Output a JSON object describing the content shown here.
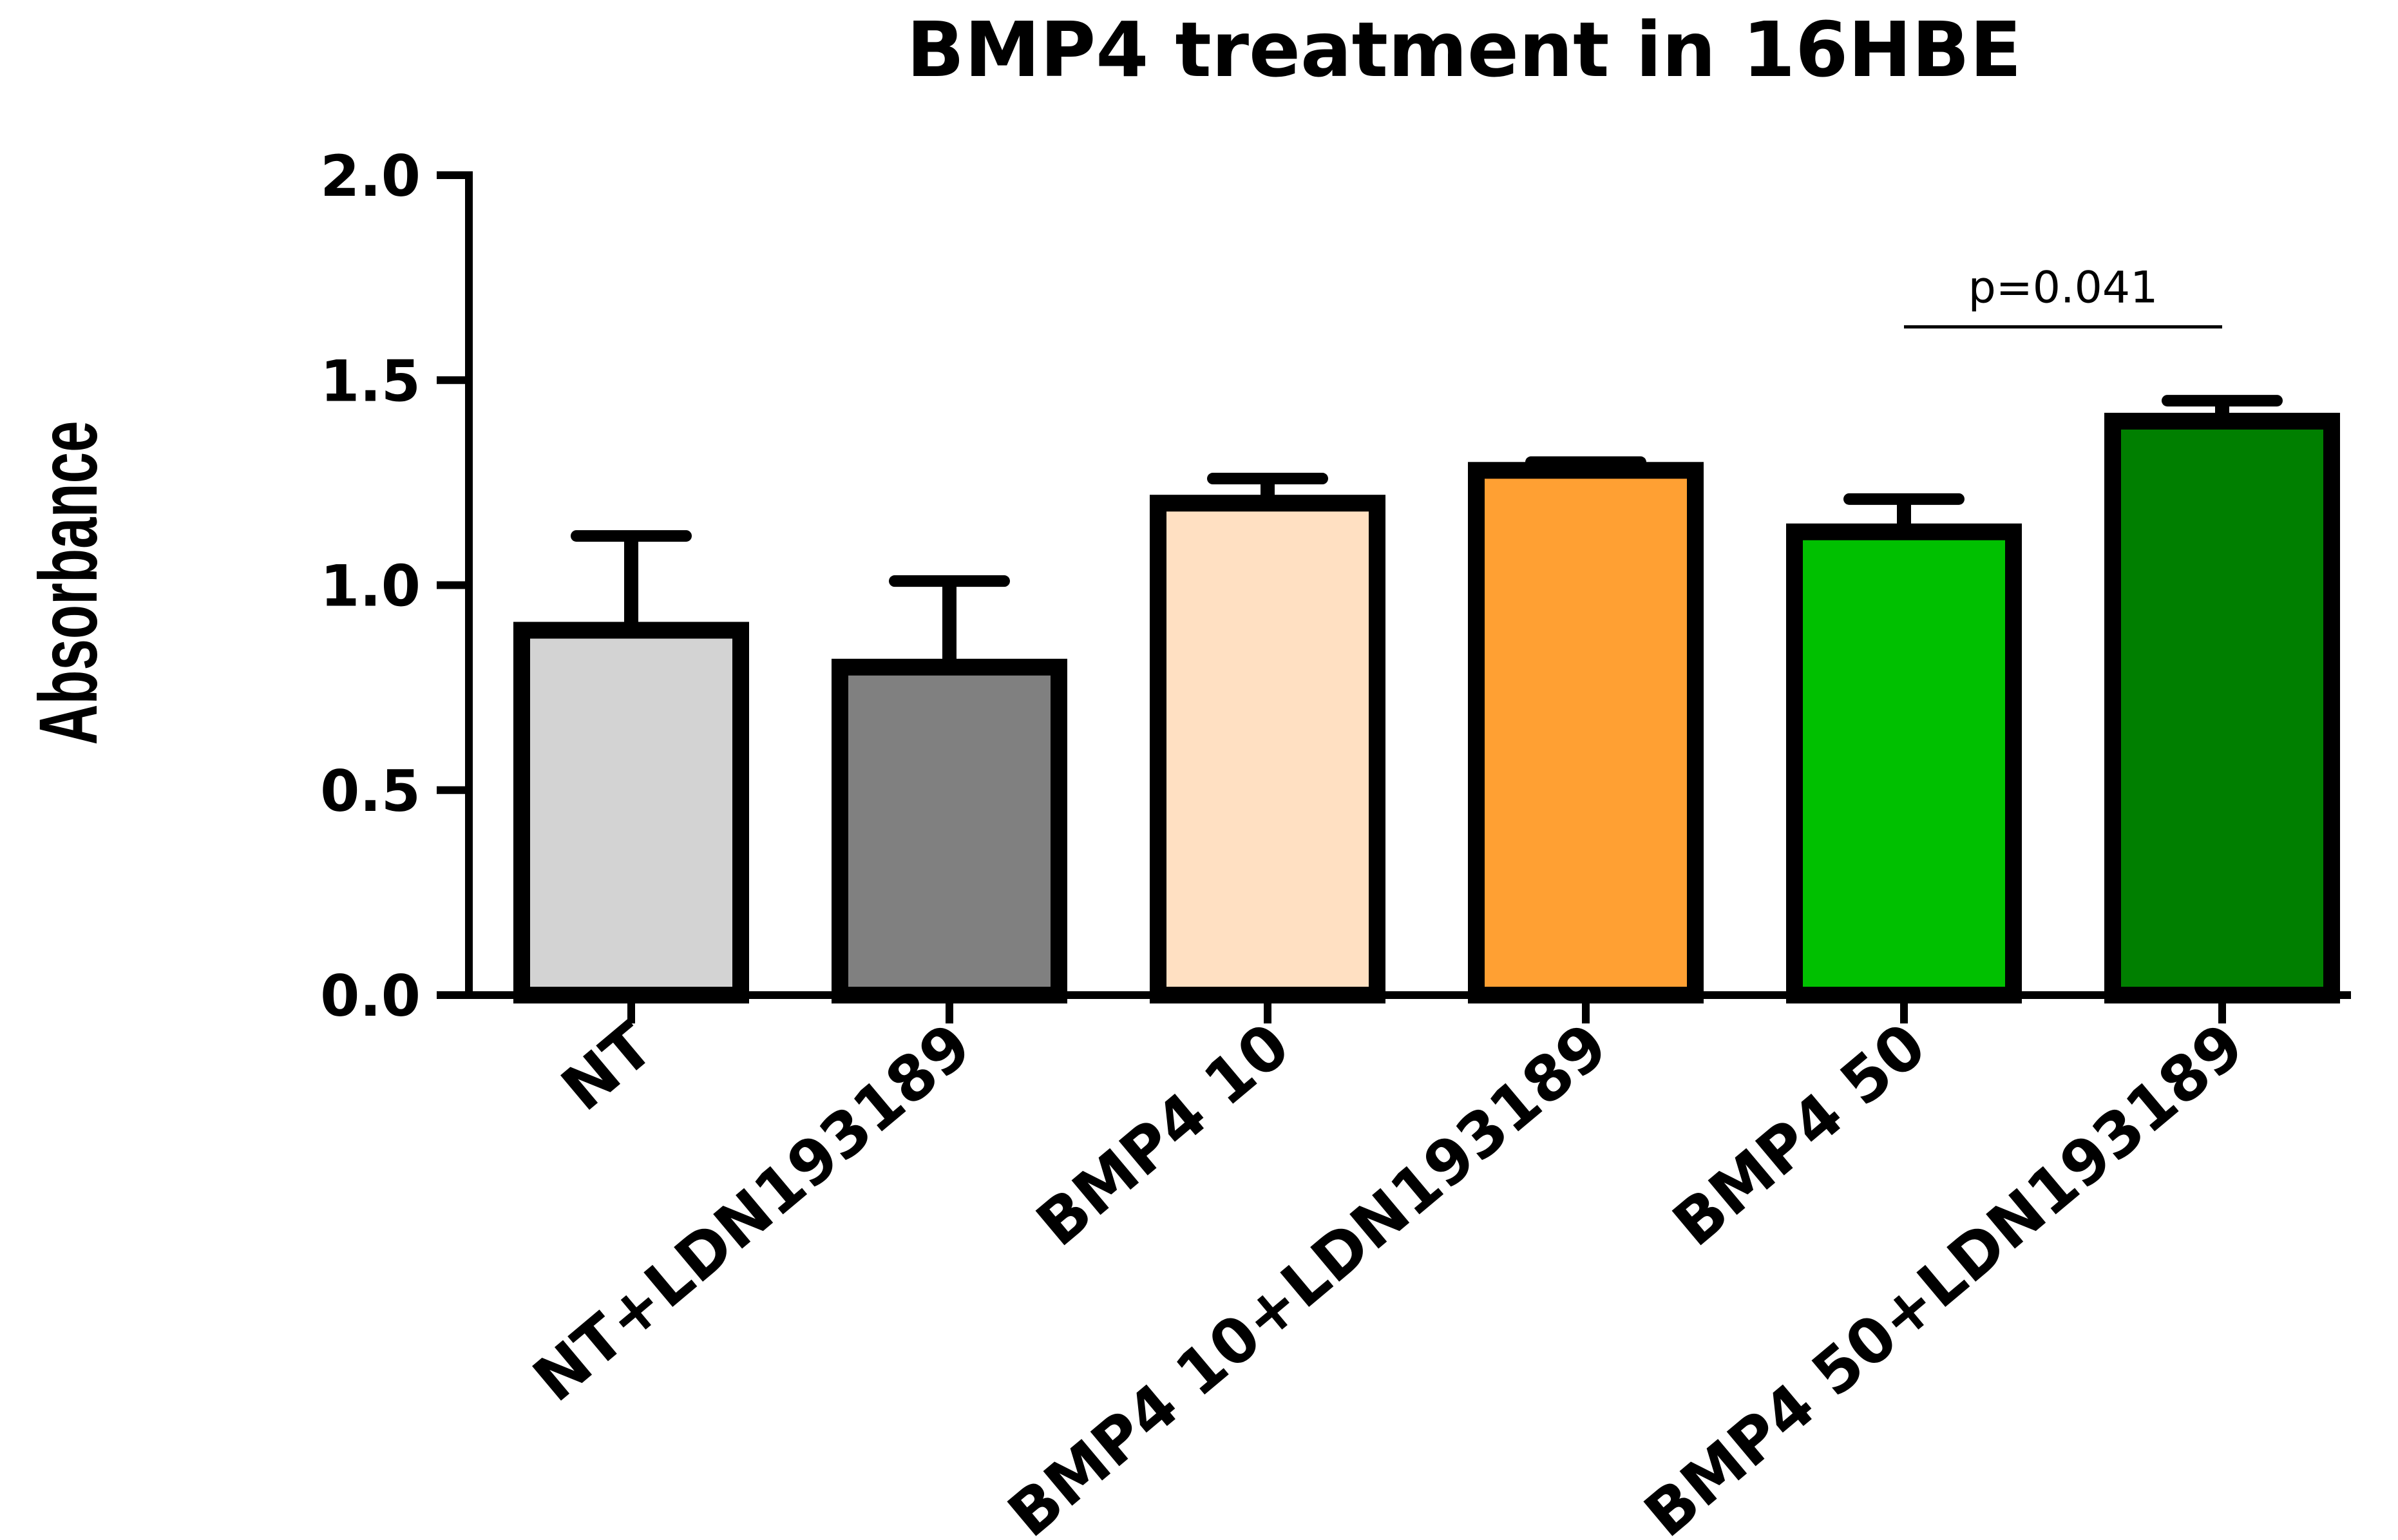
{
  "chart_data": {
    "type": "bar",
    "title": "BMP4 treatment in 16HBE",
    "xlabel": "",
    "ylabel": "Absorbance",
    "ylim": [
      0,
      2.0
    ],
    "yticks": [
      0.0,
      0.5,
      1.0,
      1.5,
      2.0
    ],
    "ytick_labels": [
      "0.0",
      "0.5",
      "1.0",
      "1.5",
      "2.0"
    ],
    "grid": false,
    "categories": [
      "NT",
      "NT+LDN193189",
      "BMP4 10",
      "BMP4 10+LDN193189",
      "BMP4 50",
      "BMP4 50+LDN193189"
    ],
    "values": [
      0.89,
      0.8,
      1.2,
      1.28,
      1.13,
      1.4
    ],
    "errors": [
      0.23,
      0.21,
      0.06,
      0.02,
      0.08,
      0.05
    ],
    "colors": [
      "#d3d3d3",
      "#808080",
      "#ffe0c2",
      "#ffa033",
      "#00c000",
      "#007f00"
    ],
    "annotations": [
      {
        "text": "p=0.041",
        "from_category": 4,
        "to_category": 5,
        "y": 1.63
      }
    ]
  }
}
